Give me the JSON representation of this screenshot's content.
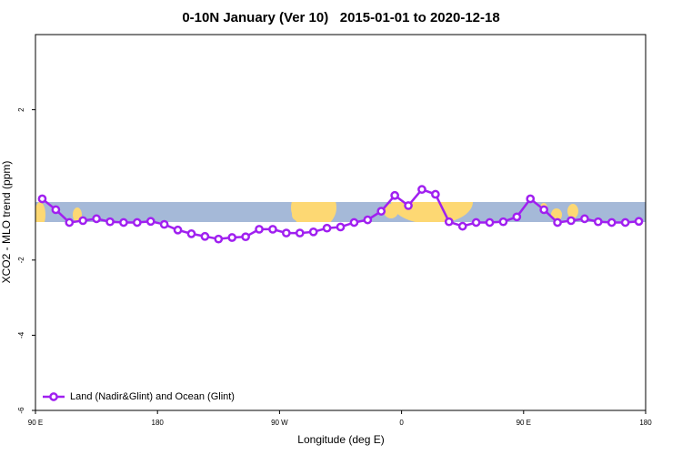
{
  "chart_data": {
    "type": "line",
    "title": "0-10N January (Ver 10)   2015-01-01 to 2020-12-18",
    "x_label": "Longitude (deg E)",
    "y_label": "XCO2 - MLO trend (ppm)",
    "xlim": [
      90,
      540
    ],
    "xticks": [
      {
        "value": 90,
        "label": "90 E"
      },
      {
        "value": 180,
        "label": "180"
      },
      {
        "value": 270,
        "label": "90 W"
      },
      {
        "value": 360,
        "label": "0"
      },
      {
        "value": 450,
        "label": "90 E"
      },
      {
        "value": 540,
        "label": "180"
      }
    ],
    "ylim": [
      -6,
      4
    ],
    "yticks": [
      -6,
      -4,
      -2,
      2
    ],
    "legend": "bottom-left",
    "series": [
      {
        "name": "Land (Nadir&Glint) and Ocean (Glint)",
        "color": "#a020f0",
        "x": [
          95,
          105,
          115,
          125,
          135,
          145,
          155,
          165,
          175,
          185,
          195,
          205,
          215,
          225,
          235,
          245,
          255,
          265,
          275,
          285,
          295,
          305,
          315,
          325,
          335,
          345,
          355,
          365,
          375,
          385,
          395,
          405,
          415,
          425,
          435,
          445,
          455,
          465,
          475,
          485,
          495,
          505,
          515,
          525,
          535
        ],
        "values": [
          -0.37,
          -0.66,
          -1.0,
          -0.95,
          -0.9,
          -0.98,
          -1.0,
          -1.0,
          -0.97,
          -1.05,
          -1.2,
          -1.3,
          -1.37,
          -1.44,
          -1.4,
          -1.38,
          -1.18,
          -1.18,
          -1.28,
          -1.28,
          -1.25,
          -1.15,
          -1.12,
          -1.0,
          -0.93,
          -0.7,
          -0.28,
          -0.55,
          -0.12,
          -0.25,
          -0.98,
          -1.1,
          -1.0,
          -1.0,
          -0.98,
          -0.85,
          -0.37,
          -0.66,
          -1.0,
          -0.95,
          -0.9,
          -0.98,
          -1.0,
          -1.0,
          -0.97
        ]
      }
    ]
  }
}
